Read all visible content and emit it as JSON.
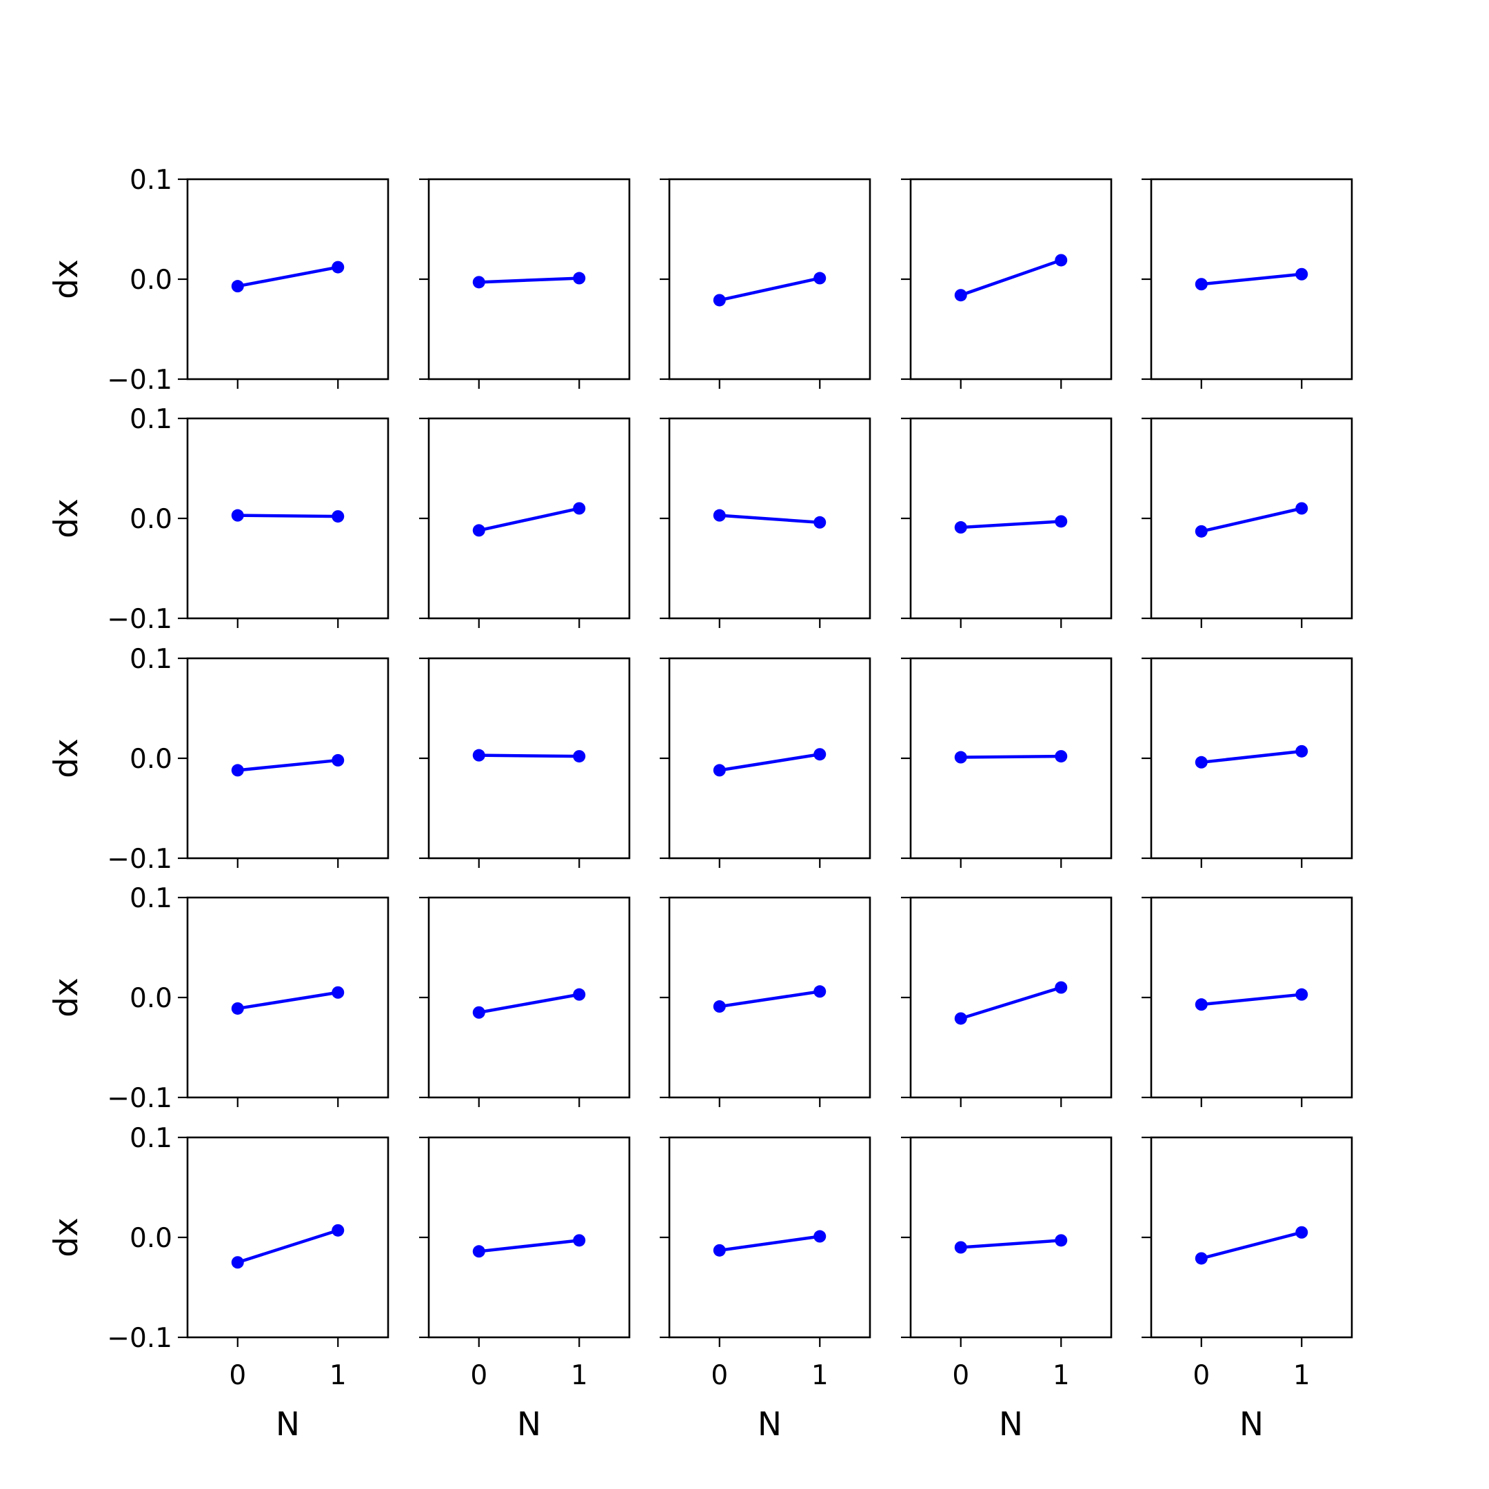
{
  "chart_data": {
    "type": "line",
    "rows": 5,
    "cols": 5,
    "xlabel": "N",
    "ylabel": "dx",
    "xticks": [
      0,
      1
    ],
    "xtick_labels": [
      "0",
      "1"
    ],
    "xlim": [
      -0.5,
      1.5
    ],
    "yticks": [
      0.1,
      0.0,
      -0.1
    ],
    "ytick_labels": [
      "0.1",
      "0.0",
      "−0.1"
    ],
    "ylim": [
      -0.1,
      0.1
    ],
    "grid": false,
    "line_color": "#0000ff",
    "panels": [
      {
        "row": 0,
        "col": 0,
        "x": [
          0,
          1
        ],
        "y": [
          -0.007,
          0.012
        ]
      },
      {
        "row": 0,
        "col": 1,
        "x": [
          0,
          1
        ],
        "y": [
          -0.003,
          0.001
        ]
      },
      {
        "row": 0,
        "col": 2,
        "x": [
          0,
          1
        ],
        "y": [
          -0.021,
          0.001
        ]
      },
      {
        "row": 0,
        "col": 3,
        "x": [
          0,
          1
        ],
        "y": [
          -0.016,
          0.019
        ]
      },
      {
        "row": 0,
        "col": 4,
        "x": [
          0,
          1
        ],
        "y": [
          -0.005,
          0.005
        ]
      },
      {
        "row": 1,
        "col": 0,
        "x": [
          0,
          1
        ],
        "y": [
          0.003,
          0.002
        ]
      },
      {
        "row": 1,
        "col": 1,
        "x": [
          0,
          1
        ],
        "y": [
          -0.012,
          0.01
        ]
      },
      {
        "row": 1,
        "col": 2,
        "x": [
          0,
          1
        ],
        "y": [
          0.003,
          -0.004
        ]
      },
      {
        "row": 1,
        "col": 3,
        "x": [
          0,
          1
        ],
        "y": [
          -0.009,
          -0.003
        ]
      },
      {
        "row": 1,
        "col": 4,
        "x": [
          0,
          1
        ],
        "y": [
          -0.013,
          0.01
        ]
      },
      {
        "row": 2,
        "col": 0,
        "x": [
          0,
          1
        ],
        "y": [
          -0.012,
          -0.002
        ]
      },
      {
        "row": 2,
        "col": 1,
        "x": [
          0,
          1
        ],
        "y": [
          0.003,
          0.002
        ]
      },
      {
        "row": 2,
        "col": 2,
        "x": [
          0,
          1
        ],
        "y": [
          -0.012,
          0.004
        ]
      },
      {
        "row": 2,
        "col": 3,
        "x": [
          0,
          1
        ],
        "y": [
          0.001,
          0.002
        ]
      },
      {
        "row": 2,
        "col": 4,
        "x": [
          0,
          1
        ],
        "y": [
          -0.004,
          0.007
        ]
      },
      {
        "row": 3,
        "col": 0,
        "x": [
          0,
          1
        ],
        "y": [
          -0.011,
          0.005
        ]
      },
      {
        "row": 3,
        "col": 1,
        "x": [
          0,
          1
        ],
        "y": [
          -0.015,
          0.003
        ]
      },
      {
        "row": 3,
        "col": 2,
        "x": [
          0,
          1
        ],
        "y": [
          -0.009,
          0.006
        ]
      },
      {
        "row": 3,
        "col": 3,
        "x": [
          0,
          1
        ],
        "y": [
          -0.021,
          0.01
        ]
      },
      {
        "row": 3,
        "col": 4,
        "x": [
          0,
          1
        ],
        "y": [
          -0.007,
          0.003
        ]
      },
      {
        "row": 4,
        "col": 0,
        "x": [
          0,
          1
        ],
        "y": [
          -0.025,
          0.007
        ]
      },
      {
        "row": 4,
        "col": 1,
        "x": [
          0,
          1
        ],
        "y": [
          -0.014,
          -0.003
        ]
      },
      {
        "row": 4,
        "col": 2,
        "x": [
          0,
          1
        ],
        "y": [
          -0.013,
          0.001
        ]
      },
      {
        "row": 4,
        "col": 3,
        "x": [
          0,
          1
        ],
        "y": [
          -0.01,
          -0.003
        ]
      },
      {
        "row": 4,
        "col": 4,
        "x": [
          0,
          1
        ],
        "y": [
          -0.021,
          0.005
        ]
      }
    ]
  }
}
